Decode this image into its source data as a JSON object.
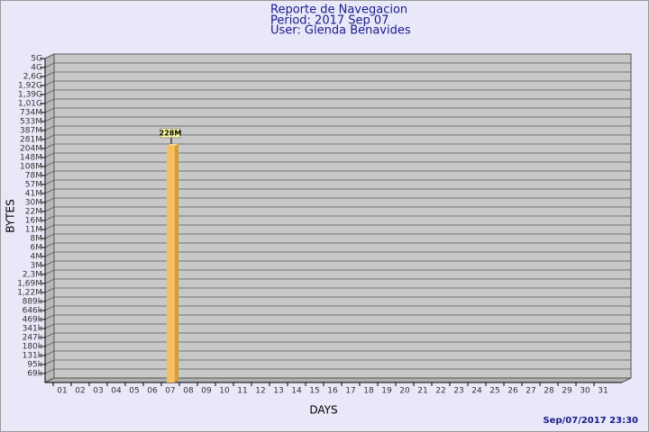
{
  "chart_data": {
    "type": "bar",
    "title": "Reporte de Navegacion",
    "subtitle": [
      "Period: 2017 Sep 07",
      "User: Glenda Benavides"
    ],
    "x_label": "DAYS",
    "y_label": "BYTES",
    "footer": "Sep/07/2017 23:30",
    "categories": [
      "01",
      "02",
      "03",
      "04",
      "05",
      "06",
      "07",
      "08",
      "09",
      "10",
      "11",
      "12",
      "13",
      "14",
      "15",
      "16",
      "17",
      "18",
      "19",
      "20",
      "21",
      "22",
      "23",
      "24",
      "25",
      "26",
      "27",
      "28",
      "29",
      "30",
      "31"
    ],
    "values": [
      0,
      0,
      0,
      0,
      0,
      0,
      228000000,
      0,
      0,
      0,
      0,
      0,
      0,
      0,
      0,
      0,
      0,
      0,
      0,
      0,
      0,
      0,
      0,
      0,
      0,
      0,
      0,
      0,
      0,
      0,
      0
    ],
    "value_labels": [
      null,
      null,
      null,
      null,
      null,
      null,
      "228M",
      null,
      null,
      null,
      null,
      null,
      null,
      null,
      null,
      null,
      null,
      null,
      null,
      null,
      null,
      null,
      null,
      null,
      null,
      null,
      null,
      null,
      null,
      null,
      null
    ],
    "color": "#f5c060",
    "ylim": [
      0,
      5000000000
    ],
    "yticks": [
      {
        "value": 5000000000,
        "label": "5G"
      },
      {
        "value": 4000000000,
        "label": "4G"
      },
      {
        "value": 2600000000,
        "label": "2,6G"
      },
      {
        "value": 1920000000,
        "label": "1,92G"
      },
      {
        "value": 1390000000,
        "label": "1,39G"
      },
      {
        "value": 1010000000,
        "label": "1,01G"
      },
      {
        "value": 734000000,
        "label": "734M"
      },
      {
        "value": 533000000,
        "label": "533M"
      },
      {
        "value": 387000000,
        "label": "387M"
      },
      {
        "value": 281000000,
        "label": "281M"
      },
      {
        "value": 204000000,
        "label": "204M"
      },
      {
        "value": 148000000,
        "label": "148M"
      },
      {
        "value": 108000000,
        "label": "108M"
      },
      {
        "value": 78000000,
        "label": "78M"
      },
      {
        "value": 57000000,
        "label": "57M"
      },
      {
        "value": 41000000,
        "label": "41M"
      },
      {
        "value": 30000000,
        "label": "30M"
      },
      {
        "value": 22000000,
        "label": "22M"
      },
      {
        "value": 16000000,
        "label": "16M"
      },
      {
        "value": 11000000,
        "label": "11M"
      },
      {
        "value": 8000000,
        "label": "8M"
      },
      {
        "value": 6000000,
        "label": "6M"
      },
      {
        "value": 4000000,
        "label": "4M"
      },
      {
        "value": 3000000,
        "label": "3M"
      },
      {
        "value": 2300000,
        "label": "2,3M"
      },
      {
        "value": 1690000,
        "label": "1,69M"
      },
      {
        "value": 1220000,
        "label": "1,22M"
      },
      {
        "value": 889000,
        "label": "889k"
      },
      {
        "value": 646000,
        "label": "646k"
      },
      {
        "value": 469000,
        "label": "469k"
      },
      {
        "value": 341000,
        "label": "341k"
      },
      {
        "value": 247000,
        "label": "247k"
      },
      {
        "value": 180000,
        "label": "180k"
      },
      {
        "value": 131000,
        "label": "131k"
      },
      {
        "value": 95000,
        "label": "95k"
      },
      {
        "value": 69000,
        "label": "69k"
      }
    ],
    "grid": true
  }
}
